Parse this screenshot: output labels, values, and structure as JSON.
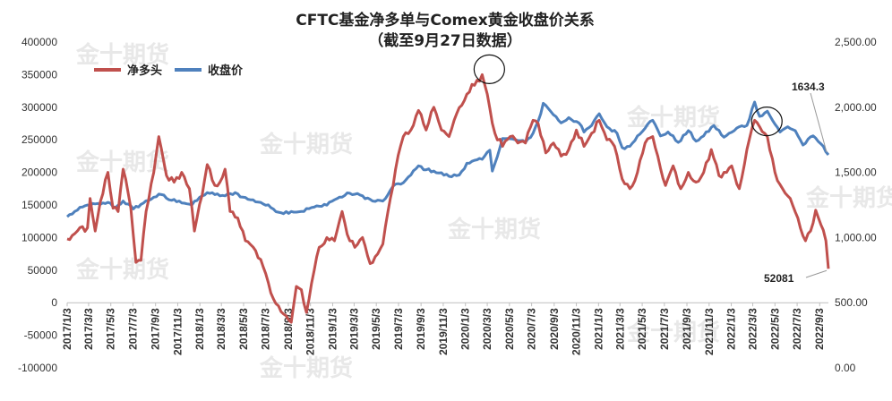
{
  "chart_data": {
    "type": "line",
    "title": "CFTC基金净多单与Comex黄金收盘价关系",
    "subtitle": "（截至9月27日数据）",
    "watermark": "金十期货",
    "series": [
      {
        "name": "净多头",
        "axis": "left",
        "color": "#c0504d",
        "anchors": [
          [
            "2017-01-03",
            98000
          ],
          [
            "2017-01-31",
            110000
          ],
          [
            "2017-02-28",
            115000
          ],
          [
            "2017-03-07",
            160000
          ],
          [
            "2017-03-21",
            110000
          ],
          [
            "2017-04-04",
            155000
          ],
          [
            "2017-04-25",
            200000
          ],
          [
            "2017-05-09",
            145000
          ],
          [
            "2017-05-23",
            140000
          ],
          [
            "2017-06-06",
            205000
          ],
          [
            "2017-06-27",
            145000
          ],
          [
            "2017-07-11",
            62000
          ],
          [
            "2017-07-25",
            65000
          ],
          [
            "2017-08-08",
            140000
          ],
          [
            "2017-08-29",
            200000
          ],
          [
            "2017-09-12",
            255000
          ],
          [
            "2017-10-03",
            195000
          ],
          [
            "2017-10-24",
            185000
          ],
          [
            "2017-11-14",
            200000
          ],
          [
            "2017-12-05",
            175000
          ],
          [
            "2017-12-19",
            110000
          ],
          [
            "2018-01-09",
            165000
          ],
          [
            "2018-01-23",
            212000
          ],
          [
            "2018-02-13",
            180000
          ],
          [
            "2018-02-27",
            185000
          ],
          [
            "2018-03-13",
            205000
          ],
          [
            "2018-03-27",
            140000
          ],
          [
            "2018-04-17",
            130000
          ],
          [
            "2018-05-08",
            95000
          ],
          [
            "2018-06-05",
            80000
          ],
          [
            "2018-06-26",
            55000
          ],
          [
            "2018-07-17",
            15000
          ],
          [
            "2018-08-07",
            -5000
          ],
          [
            "2018-08-28",
            -20000
          ],
          [
            "2018-09-11",
            -30000
          ],
          [
            "2018-09-25",
            25000
          ],
          [
            "2018-10-09",
            20000
          ],
          [
            "2018-10-23",
            -15000
          ],
          [
            "2018-11-06",
            30000
          ],
          [
            "2018-11-27",
            85000
          ],
          [
            "2018-12-18",
            100000
          ],
          [
            "2019-01-08",
            95000
          ],
          [
            "2019-01-29",
            140000
          ],
          [
            "2019-02-12",
            105000
          ],
          [
            "2019-03-05",
            85000
          ],
          [
            "2019-03-26",
            100000
          ],
          [
            "2019-04-16",
            60000
          ],
          [
            "2019-05-07",
            75000
          ],
          [
            "2019-05-21",
            90000
          ],
          [
            "2019-06-04",
            140000
          ],
          [
            "2019-06-25",
            205000
          ],
          [
            "2019-07-16",
            255000
          ],
          [
            "2019-08-06",
            265000
          ],
          [
            "2019-08-27",
            295000
          ],
          [
            "2019-09-17",
            265000
          ],
          [
            "2019-10-08",
            300000
          ],
          [
            "2019-10-29",
            265000
          ],
          [
            "2019-11-19",
            255000
          ],
          [
            "2019-12-10",
            290000
          ],
          [
            "2020-01-07",
            320000
          ],
          [
            "2020-01-21",
            335000
          ],
          [
            "2020-02-11",
            340000
          ],
          [
            "2020-02-18",
            350000
          ],
          [
            "2020-03-03",
            320000
          ],
          [
            "2020-03-24",
            260000
          ],
          [
            "2020-04-14",
            240000
          ],
          [
            "2020-05-05",
            255000
          ],
          [
            "2020-05-26",
            245000
          ],
          [
            "2020-06-16",
            245000
          ],
          [
            "2020-07-07",
            280000
          ],
          [
            "2020-07-21",
            275000
          ],
          [
            "2020-08-11",
            230000
          ],
          [
            "2020-09-01",
            245000
          ],
          [
            "2020-09-22",
            225000
          ],
          [
            "2020-10-13",
            235000
          ],
          [
            "2020-11-03",
            265000
          ],
          [
            "2020-11-24",
            240000
          ],
          [
            "2020-12-15",
            260000
          ],
          [
            "2021-01-05",
            280000
          ],
          [
            "2021-01-26",
            250000
          ],
          [
            "2021-02-16",
            240000
          ],
          [
            "2021-03-09",
            190000
          ],
          [
            "2021-03-30",
            175000
          ],
          [
            "2021-04-20",
            200000
          ],
          [
            "2021-05-11",
            245000
          ],
          [
            "2021-06-01",
            255000
          ],
          [
            "2021-06-15",
            225000
          ],
          [
            "2021-07-06",
            180000
          ],
          [
            "2021-07-27",
            210000
          ],
          [
            "2021-08-17",
            175000
          ],
          [
            "2021-09-07",
            200000
          ],
          [
            "2021-09-28",
            185000
          ],
          [
            "2021-10-19",
            200000
          ],
          [
            "2021-11-09",
            235000
          ],
          [
            "2021-11-30",
            195000
          ],
          [
            "2021-12-21",
            200000
          ],
          [
            "2022-01-04",
            210000
          ],
          [
            "2022-01-25",
            175000
          ],
          [
            "2022-02-15",
            235000
          ],
          [
            "2022-03-08",
            280000
          ],
          [
            "2022-03-22",
            270000
          ],
          [
            "2022-04-12",
            255000
          ],
          [
            "2022-05-03",
            200000
          ],
          [
            "2022-05-24",
            175000
          ],
          [
            "2022-06-14",
            160000
          ],
          [
            "2022-07-05",
            130000
          ],
          [
            "2022-07-26",
            95000
          ],
          [
            "2022-08-09",
            110000
          ],
          [
            "2022-08-23",
            142000
          ],
          [
            "2022-09-06",
            120000
          ],
          [
            "2022-09-20",
            95000
          ],
          [
            "2022-09-27",
            52081
          ]
        ]
      },
      {
        "name": "收盘价",
        "axis": "right",
        "color": "#4f81bd",
        "anchors": [
          [
            "2017-01-03",
            1160
          ],
          [
            "2017-01-31",
            1210
          ],
          [
            "2017-02-28",
            1250
          ],
          [
            "2017-04-04",
            1255
          ],
          [
            "2017-04-25",
            1270
          ],
          [
            "2017-05-16",
            1230
          ],
          [
            "2017-06-06",
            1280
          ],
          [
            "2017-07-04",
            1220
          ],
          [
            "2017-07-25",
            1255
          ],
          [
            "2017-08-29",
            1310
          ],
          [
            "2017-09-19",
            1330
          ],
          [
            "2017-10-10",
            1290
          ],
          [
            "2017-11-07",
            1280
          ],
          [
            "2017-12-12",
            1250
          ],
          [
            "2018-01-09",
            1320
          ],
          [
            "2018-01-23",
            1345
          ],
          [
            "2018-02-13",
            1330
          ],
          [
            "2018-03-13",
            1320
          ],
          [
            "2018-04-10",
            1345
          ],
          [
            "2018-05-01",
            1310
          ],
          [
            "2018-05-22",
            1290
          ],
          [
            "2018-06-19",
            1270
          ],
          [
            "2018-07-17",
            1230
          ],
          [
            "2018-08-14",
            1190
          ],
          [
            "2018-09-11",
            1200
          ],
          [
            "2018-10-09",
            1200
          ],
          [
            "2018-11-06",
            1230
          ],
          [
            "2018-12-04",
            1240
          ],
          [
            "2019-01-08",
            1290
          ],
          [
            "2019-02-19",
            1340
          ],
          [
            "2019-03-26",
            1320
          ],
          [
            "2019-04-23",
            1280
          ],
          [
            "2019-05-21",
            1280
          ],
          [
            "2019-06-04",
            1330
          ],
          [
            "2019-06-25",
            1410
          ],
          [
            "2019-07-16",
            1420
          ],
          [
            "2019-08-06",
            1480
          ],
          [
            "2019-08-27",
            1550
          ],
          [
            "2019-09-17",
            1520
          ],
          [
            "2019-10-08",
            1510
          ],
          [
            "2019-11-19",
            1470
          ],
          [
            "2019-12-17",
            1480
          ],
          [
            "2020-01-07",
            1570
          ],
          [
            "2020-02-18",
            1600
          ],
          [
            "2020-03-10",
            1670
          ],
          [
            "2020-03-17",
            1510
          ],
          [
            "2020-04-14",
            1760
          ],
          [
            "2020-05-19",
            1750
          ],
          [
            "2020-06-16",
            1730
          ],
          [
            "2020-07-07",
            1800
          ],
          [
            "2020-07-28",
            1950
          ],
          [
            "2020-08-04",
            2030
          ],
          [
            "2020-08-18",
            1990
          ],
          [
            "2020-09-22",
            1880
          ],
          [
            "2020-10-13",
            1920
          ],
          [
            "2020-11-10",
            1880
          ],
          [
            "2020-11-24",
            1810
          ],
          [
            "2020-12-15",
            1860
          ],
          [
            "2021-01-05",
            1950
          ],
          [
            "2021-01-26",
            1850
          ],
          [
            "2021-02-23",
            1800
          ],
          [
            "2021-03-09",
            1690
          ],
          [
            "2021-03-30",
            1700
          ],
          [
            "2021-04-20",
            1780
          ],
          [
            "2021-05-18",
            1870
          ],
          [
            "2021-06-01",
            1900
          ],
          [
            "2021-06-22",
            1780
          ],
          [
            "2021-07-13",
            1810
          ],
          [
            "2021-08-10",
            1730
          ],
          [
            "2021-09-07",
            1820
          ],
          [
            "2021-09-28",
            1740
          ],
          [
            "2021-10-19",
            1780
          ],
          [
            "2021-11-16",
            1860
          ],
          [
            "2021-12-14",
            1770
          ],
          [
            "2022-01-11",
            1820
          ],
          [
            "2022-01-25",
            1850
          ],
          [
            "2022-02-15",
            1860
          ],
          [
            "2022-03-08",
            2040
          ],
          [
            "2022-03-22",
            1930
          ],
          [
            "2022-04-12",
            1970
          ],
          [
            "2022-05-03",
            1870
          ],
          [
            "2022-05-17",
            1810
          ],
          [
            "2022-06-07",
            1850
          ],
          [
            "2022-06-28",
            1820
          ],
          [
            "2022-07-19",
            1710
          ],
          [
            "2022-08-16",
            1780
          ],
          [
            "2022-09-06",
            1720
          ],
          [
            "2022-09-27",
            1634.3
          ]
        ]
      }
    ],
    "y_left": {
      "min": -100000,
      "max": 400000,
      "step": 50000,
      "ticks": [
        "400000",
        "350000",
        "300000",
        "250000",
        "200000",
        "150000",
        "100000",
        "50000",
        "0",
        "-50000",
        "-100000"
      ]
    },
    "y_right": {
      "min": 0,
      "max": 2500,
      "step": 500,
      "ticks": [
        "2,500.00",
        "2,000.00",
        "1,500.00",
        "1,000.00",
        "500.00",
        "0.00"
      ]
    },
    "x_axis": {
      "start": "2017-01-03",
      "end": "2022-09-27",
      "ticks": [
        [
          "2017-01-03",
          "2017/1/3"
        ],
        [
          "2017-03-03",
          "2017/3/3"
        ],
        [
          "2017-05-03",
          "2017/5/3"
        ],
        [
          "2017-07-03",
          "2017/7/3"
        ],
        [
          "2017-09-03",
          "2017/9/3"
        ],
        [
          "2017-11-03",
          "2017/11/3"
        ],
        [
          "2018-01-03",
          "2018/1/3"
        ],
        [
          "2018-03-03",
          "2018/3/3"
        ],
        [
          "2018-05-03",
          "2018/5/3"
        ],
        [
          "2018-07-03",
          "2018/7/3"
        ],
        [
          "2018-09-03",
          "2018/9/3"
        ],
        [
          "2018-11-03",
          "2018/11/3"
        ],
        [
          "2019-01-03",
          "2019/1/3"
        ],
        [
          "2019-03-03",
          "2019/3/3"
        ],
        [
          "2019-05-03",
          "2019/5/3"
        ],
        [
          "2019-07-03",
          "2019/7/3"
        ],
        [
          "2019-09-03",
          "2019/9/3"
        ],
        [
          "2019-11-03",
          "2019/11/3"
        ],
        [
          "2020-01-03",
          "2020/1/3"
        ],
        [
          "2020-03-03",
          "2020/3/3"
        ],
        [
          "2020-05-03",
          "2020/5/3"
        ],
        [
          "2020-07-03",
          "2020/7/3"
        ],
        [
          "2020-09-03",
          "2020/9/3"
        ],
        [
          "2020-11-03",
          "2020/11/3"
        ],
        [
          "2021-01-03",
          "2021/1/3"
        ],
        [
          "2021-03-03",
          "2021/3/3"
        ],
        [
          "2021-05-03",
          "2021/5/3"
        ],
        [
          "2021-07-03",
          "2021/7/3"
        ],
        [
          "2021-09-03",
          "2021/9/3"
        ],
        [
          "2021-11-03",
          "2021/11/3"
        ],
        [
          "2022-01-03",
          "2022/1/3"
        ],
        [
          "2022-03-03",
          "2022/3/3"
        ],
        [
          "2022-05-03",
          "2022/5/3"
        ],
        [
          "2022-07-03",
          "2022/7/3"
        ],
        [
          "2022-09-03",
          "2022/9/3"
        ]
      ]
    },
    "legend": {
      "placement": "top-left"
    },
    "grid": false,
    "annotations": [
      {
        "text": "1634.3",
        "series": "收盘价",
        "x": "2022-09-27",
        "y": 1634.3
      },
      {
        "text": "52081",
        "series": "净多头",
        "x": "2022-09-27",
        "y": 52081
      }
    ],
    "highlight_circles": [
      {
        "series": "净多头",
        "x": "2020-02-18",
        "y": 350000
      },
      {
        "series": "净多头",
        "x": "2022-03-22",
        "y": 270000
      }
    ]
  }
}
